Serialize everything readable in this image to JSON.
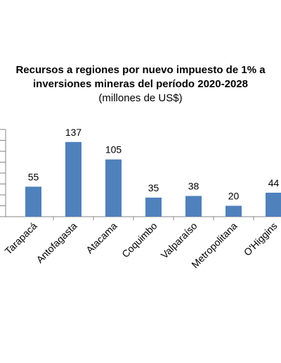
{
  "chart_data": {
    "type": "bar",
    "title_lines": [
      "Recursos a regiones por nuevo impuesto de 1% a",
      "inversiones mineras del período 2020-2028"
    ],
    "subtitle": "(millones de US$)",
    "categories": [
      "Tarapacá",
      "Antofagasta",
      "Atacama",
      "Coquimbo",
      "Valparaíso",
      "Metropolitana",
      "O'Higgins"
    ],
    "values": [
      55,
      137,
      105,
      35,
      38,
      20,
      44
    ],
    "data_labels": [
      "55",
      "137",
      "105",
      "35",
      "38",
      "20",
      "44"
    ],
    "ylim": [
      0,
      160
    ],
    "y_tick_step": 20,
    "grid": false,
    "legend": "none",
    "bar_color": "#4F81BD"
  }
}
